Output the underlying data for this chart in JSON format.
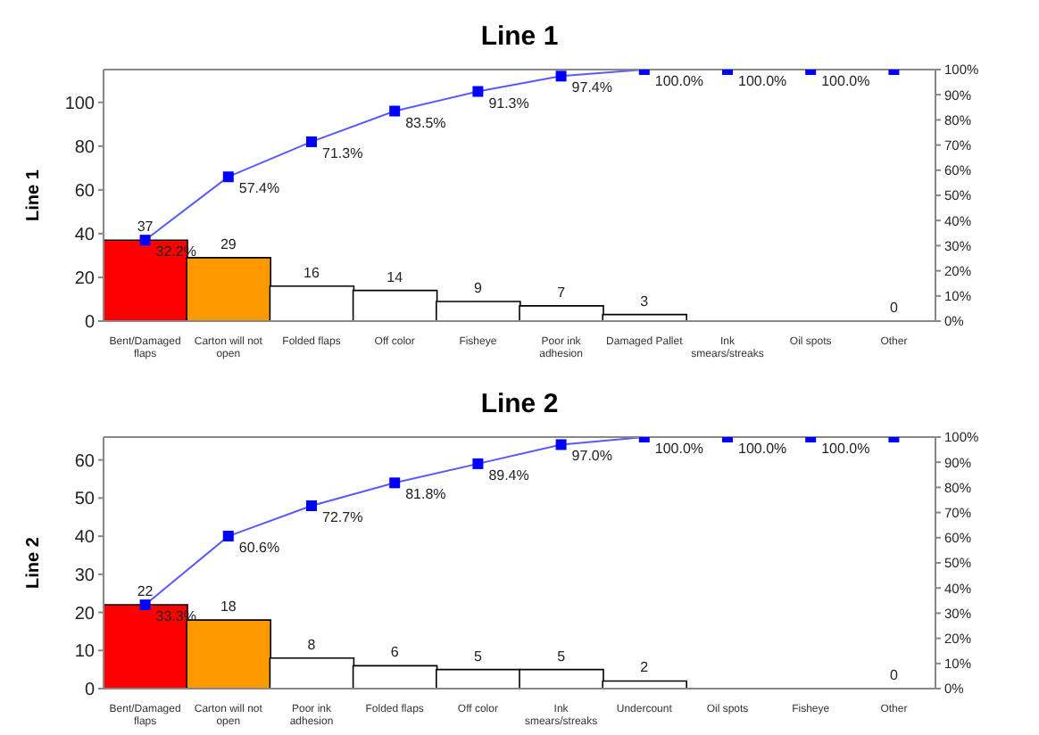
{
  "chart_data": [
    {
      "type": "bar",
      "title": "Line 1",
      "ylabel": "Line 1",
      "categories": [
        "Bent/Damaged flaps",
        "Carton will not open",
        "Folded flaps",
        "Off color",
        "Fisheye",
        "Poor ink adhesion",
        "Damaged Pallet",
        "Ink smears/streaks",
        "Oil spots",
        "Other"
      ],
      "series": [
        {
          "colors": [
            "#ff0000",
            "#ff9900",
            "#ffffff",
            "#ffffff",
            "#ffffff",
            "#ffffff",
            "#ffffff",
            "#ffffff",
            "#ffffff",
            "#ffffff"
          ],
          "values": [
            37,
            29,
            16,
            14,
            9,
            7,
            3,
            0,
            0,
            0
          ],
          "value_labels": [
            "37",
            "29",
            "16",
            "14",
            "9",
            "7",
            "3",
            null,
            null,
            "0"
          ]
        },
        {
          "type": "line",
          "color": "#0000ff",
          "axis": "y2",
          "marker": "square",
          "values": [
            32.2,
            57.4,
            71.3,
            83.5,
            91.3,
            97.4,
            100,
            100,
            100,
            100
          ],
          "value_labels": [
            "32.2%",
            "57.4%",
            "71.3%",
            "83.5%",
            "91.3%",
            "97.4%",
            "100.0%",
            "100.0%",
            "100.0%",
            null
          ]
        }
      ],
      "ylim": [
        0,
        115
      ],
      "yticks": [
        0,
        20,
        40,
        60,
        80,
        100
      ],
      "y2lim": [
        0,
        100
      ],
      "y2ticks": [
        {
          "value": 0,
          "label": "0%"
        },
        {
          "value": 10,
          "label": "10%"
        },
        {
          "value": 20,
          "label": "20%"
        },
        {
          "value": 30,
          "label": "30%"
        },
        {
          "value": 40,
          "label": "40%"
        },
        {
          "value": 50,
          "label": "50%"
        },
        {
          "value": 60,
          "label": "60%"
        },
        {
          "value": 70,
          "label": "70%"
        },
        {
          "value": 80,
          "label": "80%"
        },
        {
          "value": 90,
          "label": "90%"
        },
        {
          "value": 100,
          "label": "100%"
        }
      ]
    },
    {
      "type": "bar",
      "title": "Line 2",
      "ylabel": "Line 2",
      "categories": [
        "Bent/Damaged flaps",
        "Carton will not open",
        "Poor ink adhesion",
        "Folded flaps",
        "Off color",
        "Ink smears/streaks",
        "Undercount",
        "Oil spots",
        "Fisheye",
        "Other"
      ],
      "series": [
        {
          "colors": [
            "#ff0000",
            "#ff9900",
            "#ffffff",
            "#ffffff",
            "#ffffff",
            "#ffffff",
            "#ffffff",
            "#ffffff",
            "#ffffff",
            "#ffffff"
          ],
          "values": [
            22,
            18,
            8,
            6,
            5,
            5,
            2,
            0,
            0,
            0
          ],
          "value_labels": [
            "22",
            "18",
            "8",
            "6",
            "5",
            "5",
            "2",
            null,
            null,
            "0"
          ]
        },
        {
          "type": "line",
          "color": "#0000ff",
          "axis": "y2",
          "marker": "square",
          "values": [
            33.3,
            60.6,
            72.7,
            81.8,
            89.4,
            97.0,
            100,
            100,
            100,
            100
          ],
          "value_labels": [
            "33.3%",
            "60.6%",
            "72.7%",
            "81.8%",
            "89.4%",
            "97.0%",
            "100.0%",
            "100.0%",
            "100.0%",
            null
          ]
        }
      ],
      "ylim": [
        0,
        66
      ],
      "yticks": [
        0,
        10,
        20,
        30,
        40,
        50,
        60
      ],
      "y2lim": [
        0,
        100
      ],
      "y2ticks": [
        {
          "value": 0,
          "label": "0%"
        },
        {
          "value": 10,
          "label": "10%"
        },
        {
          "value": 20,
          "label": "20%"
        },
        {
          "value": 30,
          "label": "30%"
        },
        {
          "value": 40,
          "label": "40%"
        },
        {
          "value": 50,
          "label": "50%"
        },
        {
          "value": 60,
          "label": "60%"
        },
        {
          "value": 70,
          "label": "70%"
        },
        {
          "value": 80,
          "label": "80%"
        },
        {
          "value": 90,
          "label": "90%"
        },
        {
          "value": 100,
          "label": "100%"
        }
      ]
    }
  ]
}
